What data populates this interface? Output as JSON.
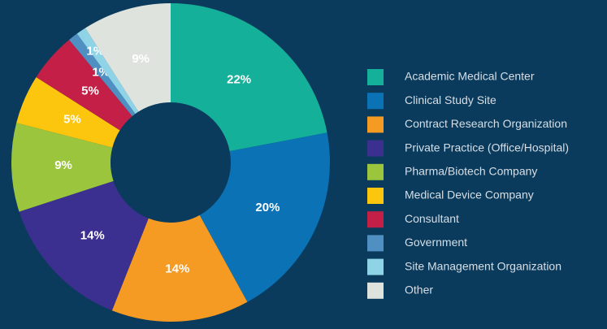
{
  "chart_data": {
    "type": "donut",
    "categories": [
      "Academic Medical Center",
      "Clinical Study Site",
      "Contract Research Organization",
      "Private Practice (Office/Hospital)",
      "Pharma/Biotech Company",
      "Medical Device Company",
      "Consultant",
      "Government",
      "Site Management Organization",
      "Other"
    ],
    "values": [
      22,
      20,
      14,
      14,
      9,
      5,
      5,
      1,
      1,
      9
    ],
    "value_labels": [
      "22%",
      "20%",
      "14%",
      "14%",
      "9%",
      "5%",
      "5%",
      "1%",
      "1%",
      "9%"
    ],
    "colors": [
      "#15b09a",
      "#0a72b5",
      "#f59a23",
      "#3b2f8f",
      "#9bc53d",
      "#fcc60e",
      "#c41f47",
      "#4f8fc2",
      "#8fd3e6",
      "#dfe3dd"
    ],
    "legend": "right"
  }
}
